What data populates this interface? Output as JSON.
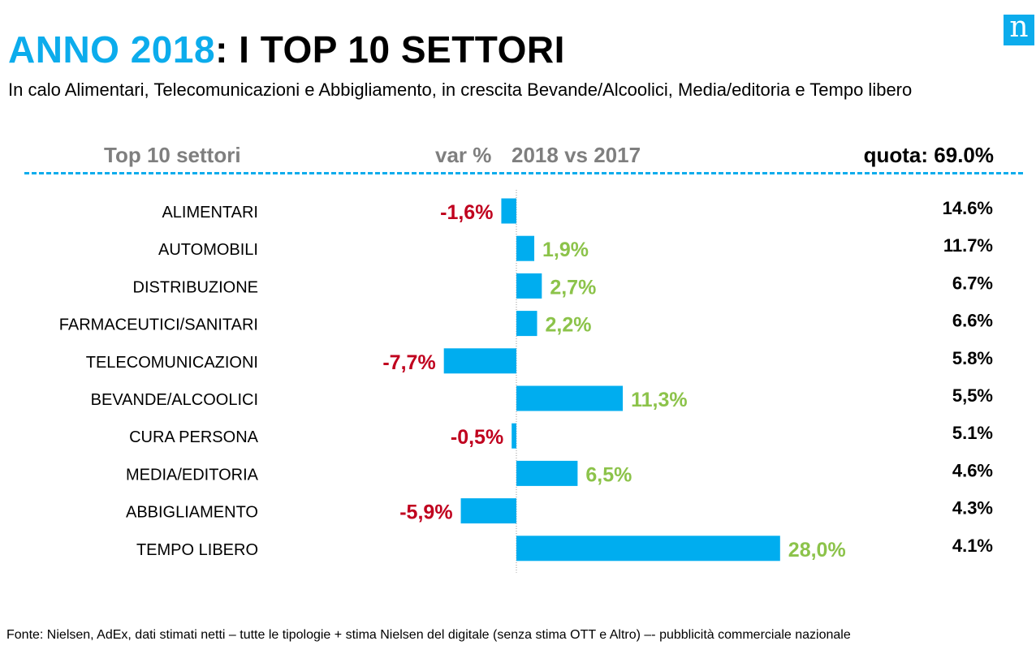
{
  "logo": "n",
  "title_accent": "ANNO 2018",
  "title_rest": ": I TOP 10 SETTORI",
  "subtitle": "In calo Alimentari, Telecomunicazioni e Abbigliamento, in crescita Bevande/Alcoolici, Media/editoria e Tempo libero",
  "header": {
    "left": "Top 10 settori",
    "var": "var %",
    "years": "2018 vs 2017",
    "quota": "quota: 69.0%"
  },
  "footer": "Fonte: Nielsen,  AdEx, dati stimati netti – tutte le tipologie + stima Nielsen del digitale  (senza stima OTT e Altro) –- pubblicità commerciale nazionale",
  "colors": {
    "accent": "#0cacec",
    "bar": "#00adef",
    "negative": "#c0001e",
    "positive": "#8cc34a",
    "axis": "#999999"
  },
  "chart_data": {
    "type": "bar",
    "orientation": "horizontal",
    "categories": [
      "ALIMENTARI",
      "AUTOMOBILI",
      "DISTRIBUZIONE",
      "FARMACEUTICI/SANITARI",
      "TELECOMUNICAZIONI",
      "BEVANDE/ALCOOLICI",
      "CURA PERSONA",
      "MEDIA/EDITORIA",
      "ABBIGLIAMENTO",
      "TEMPO LIBERO"
    ],
    "values": [
      -1.6,
      1.9,
      2.7,
      2.2,
      -7.7,
      11.3,
      -0.5,
      6.5,
      -5.9,
      28.0
    ],
    "labels": [
      "-1,6%",
      "1,9%",
      "2,7%",
      "2,2%",
      "-7,7%",
      "11,3%",
      "-0,5%",
      "6,5%",
      "-5,9%",
      "28,0%"
    ],
    "quota": [
      "14.6%",
      "11.7%",
      "6.7%",
      "6.6%",
      "5.8%",
      "5,5%",
      "5.1%",
      "4.6%",
      "4.3%",
      "4.1%"
    ]
  }
}
